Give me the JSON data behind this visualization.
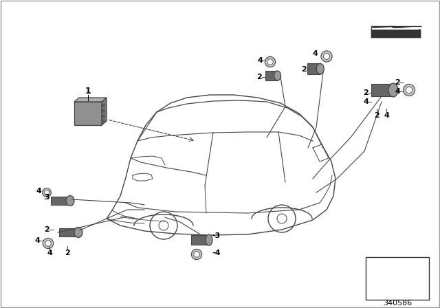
{
  "bg_color": "#ffffff",
  "lc": "#444444",
  "tc": "#000000",
  "part_number": "340586",
  "fig_w": 6.4,
  "fig_h": 4.48,
  "dpi": 100,
  "sensor_fill": "#999999",
  "sensor_dark": "#666666",
  "ecu_fill": "#888888",
  "ecu_edge": "#444444"
}
